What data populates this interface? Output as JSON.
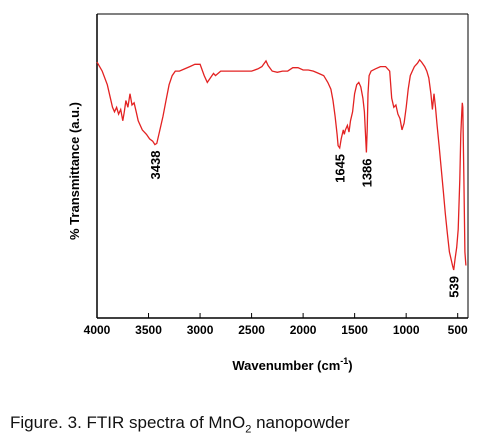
{
  "chart_data": {
    "type": "line",
    "xlabel": "Wavenumber (cm",
    "xlabel_sup": "-1",
    "xlabel_end": ")",
    "ylabel": "% Transmittance (a.u.)",
    "xlim": [
      4000,
      400
    ],
    "x_reversed": true,
    "xticks": [
      "4000",
      "3500",
      "3000",
      "2500",
      "2000",
      "1500",
      "1000",
      "500"
    ],
    "y_ticks_shown": false,
    "grid": false,
    "colors": {
      "series": "#e32222",
      "axes": "#000000"
    },
    "series": [
      {
        "points": [
          [
            4000,
            0.92
          ],
          [
            3950,
            0.88
          ],
          [
            3900,
            0.82
          ],
          [
            3870,
            0.76
          ],
          [
            3850,
            0.72
          ],
          [
            3830,
            0.7
          ],
          [
            3810,
            0.72
          ],
          [
            3790,
            0.69
          ],
          [
            3770,
            0.71
          ],
          [
            3750,
            0.66
          ],
          [
            3735,
            0.7
          ],
          [
            3720,
            0.75
          ],
          [
            3700,
            0.72
          ],
          [
            3680,
            0.78
          ],
          [
            3660,
            0.73
          ],
          [
            3640,
            0.74
          ],
          [
            3620,
            0.7
          ],
          [
            3600,
            0.66
          ],
          [
            3560,
            0.62
          ],
          [
            3520,
            0.6
          ],
          [
            3490,
            0.58
          ],
          [
            3460,
            0.57
          ],
          [
            3438,
            0.555
          ],
          [
            3420,
            0.56
          ],
          [
            3390,
            0.62
          ],
          [
            3360,
            0.68
          ],
          [
            3330,
            0.75
          ],
          [
            3300,
            0.82
          ],
          [
            3270,
            0.86
          ],
          [
            3240,
            0.88
          ],
          [
            3200,
            0.88
          ],
          [
            3150,
            0.89
          ],
          [
            3100,
            0.9
          ],
          [
            3050,
            0.91
          ],
          [
            3000,
            0.91
          ],
          [
            2960,
            0.86
          ],
          [
            2930,
            0.83
          ],
          [
            2900,
            0.85
          ],
          [
            2870,
            0.87
          ],
          [
            2850,
            0.86
          ],
          [
            2800,
            0.88
          ],
          [
            2700,
            0.88
          ],
          [
            2600,
            0.88
          ],
          [
            2500,
            0.88
          ],
          [
            2440,
            0.89
          ],
          [
            2400,
            0.9
          ],
          [
            2360,
            0.925
          ],
          [
            2340,
            0.905
          ],
          [
            2300,
            0.88
          ],
          [
            2250,
            0.875
          ],
          [
            2200,
            0.88
          ],
          [
            2150,
            0.88
          ],
          [
            2100,
            0.895
          ],
          [
            2050,
            0.895
          ],
          [
            2000,
            0.885
          ],
          [
            1950,
            0.885
          ],
          [
            1900,
            0.88
          ],
          [
            1850,
            0.87
          ],
          [
            1800,
            0.86
          ],
          [
            1760,
            0.83
          ],
          [
            1730,
            0.8
          ],
          [
            1710,
            0.75
          ],
          [
            1690,
            0.68
          ],
          [
            1670,
            0.6
          ],
          [
            1660,
            0.55
          ],
          [
            1645,
            0.54
          ],
          [
            1630,
            0.58
          ],
          [
            1610,
            0.62
          ],
          [
            1600,
            0.6
          ],
          [
            1590,
            0.62
          ],
          [
            1570,
            0.64
          ],
          [
            1555,
            0.61
          ],
          [
            1540,
            0.66
          ],
          [
            1520,
            0.7
          ],
          [
            1500,
            0.78
          ],
          [
            1480,
            0.82
          ],
          [
            1460,
            0.83
          ],
          [
            1440,
            0.81
          ],
          [
            1420,
            0.76
          ],
          [
            1405,
            0.7
          ],
          [
            1395,
            0.6
          ],
          [
            1386,
            0.52
          ],
          [
            1378,
            0.62
          ],
          [
            1370,
            0.78
          ],
          [
            1360,
            0.86
          ],
          [
            1340,
            0.88
          ],
          [
            1300,
            0.89
          ],
          [
            1250,
            0.9
          ],
          [
            1200,
            0.9
          ],
          [
            1160,
            0.88
          ],
          [
            1140,
            0.76
          ],
          [
            1120,
            0.72
          ],
          [
            1100,
            0.73
          ],
          [
            1080,
            0.69
          ],
          [
            1060,
            0.67
          ],
          [
            1040,
            0.62
          ],
          [
            1020,
            0.65
          ],
          [
            1000,
            0.72
          ],
          [
            980,
            0.8
          ],
          [
            960,
            0.86
          ],
          [
            940,
            0.88
          ],
          [
            920,
            0.9
          ],
          [
            890,
            0.915
          ],
          [
            870,
            0.93
          ],
          [
            850,
            0.92
          ],
          [
            820,
            0.9
          ],
          [
            800,
            0.88
          ],
          [
            780,
            0.85
          ],
          [
            760,
            0.78
          ],
          [
            745,
            0.71
          ],
          [
            730,
            0.78
          ],
          [
            715,
            0.72
          ],
          [
            700,
            0.64
          ],
          [
            680,
            0.55
          ],
          [
            660,
            0.45
          ],
          [
            640,
            0.35
          ],
          [
            620,
            0.25
          ],
          [
            600,
            0.16
          ],
          [
            580,
            0.08
          ],
          [
            560,
            0.04
          ],
          [
            550,
            0.02
          ],
          [
            539,
            0.0
          ],
          [
            525,
            0.05
          ],
          [
            510,
            0.1
          ],
          [
            495,
            0.18
          ],
          [
            480,
            0.4
          ],
          [
            470,
            0.6
          ],
          [
            460,
            0.7
          ],
          [
            455,
            0.74
          ],
          [
            450,
            0.72
          ],
          [
            440,
            0.4
          ],
          [
            430,
            0.08
          ],
          [
            420,
            0.02
          ]
        ]
      }
    ],
    "annotations": [
      {
        "text": "3438",
        "x": 3438
      },
      {
        "text": "1645",
        "x": 1645
      },
      {
        "text": "1386",
        "x": 1386
      },
      {
        "text": "539",
        "x": 539
      }
    ]
  },
  "caption": {
    "text_before": "Figure. 3. FTIR spectra of MnO",
    "subscript": "2",
    "text_after": " nanopowder"
  }
}
